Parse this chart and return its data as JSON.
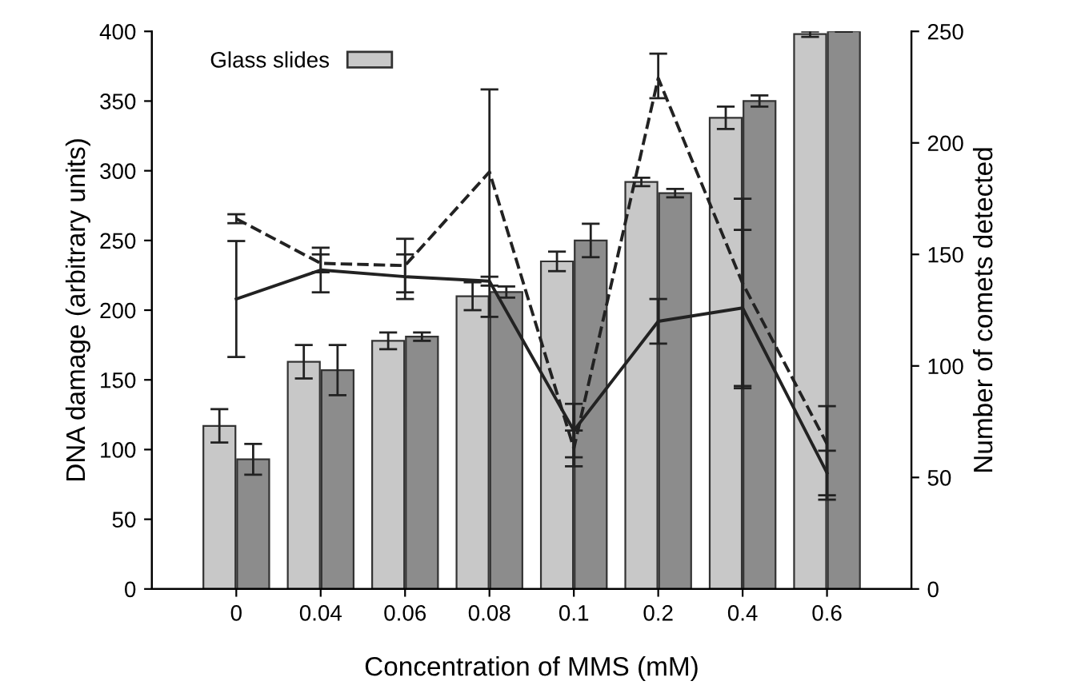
{
  "chart_data": {
    "type": "bar",
    "xlabel": "Concentration of MMS (mM)",
    "ylabel": "DNA damage (arbitrary units)",
    "y2label": "Number of comets detected",
    "categories": [
      "0",
      "0.04",
      "0.06",
      "0.08",
      "0.1",
      "0.2",
      "0.4",
      "0.6"
    ],
    "ylim": [
      0,
      400
    ],
    "yticks": [
      0,
      50,
      100,
      150,
      200,
      250,
      300,
      350,
      400
    ],
    "y2lim": [
      0,
      250
    ],
    "y2ticks": [
      0,
      50,
      100,
      150,
      200,
      250
    ],
    "grid": false,
    "legend": "top left",
    "marker": "none",
    "series": [
      {
        "name": "Glass slides",
        "color": "#c8c8c8",
        "values": [
          117,
          163,
          178,
          210,
          235,
          292,
          338,
          398
        ],
        "errors": [
          12,
          12,
          6,
          10,
          7,
          3,
          8,
          2
        ]
      },
      {
        "color": "#8c8c8c",
        "values": [
          93,
          157,
          181,
          213,
          250,
          284,
          350,
          400
        ],
        "errors": [
          11,
          18,
          3,
          4,
          12,
          3,
          4,
          null
        ]
      },
      {
        "type": "line",
        "axis": "y2",
        "color": "#222222",
        "line_style": "solid",
        "values": [
          130,
          143,
          140,
          138,
          71,
          120,
          126,
          52
        ],
        "errors": [
          26,
          10,
          10,
          2,
          12,
          10,
          35,
          10
        ]
      },
      {
        "type": "line",
        "axis": "y2",
        "color": "#222222",
        "line_style": "dashed",
        "values": [
          166,
          146,
          145,
          187,
          63,
          229,
          137,
          65
        ],
        "errors": [
          2,
          4,
          12,
          [
            122,
            224
          ],
          8,
          [
            220,
            240
          ],
          [
            90,
            175
          ],
          [
            40,
            82
          ]
        ]
      }
    ]
  }
}
